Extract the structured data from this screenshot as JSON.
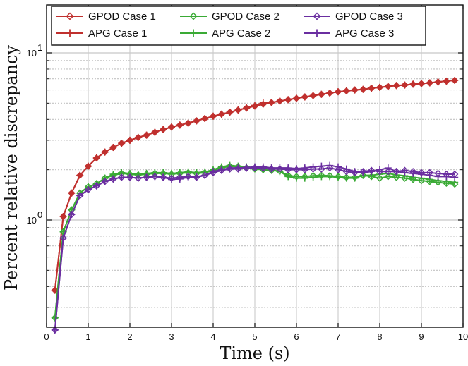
{
  "chart_data": {
    "type": "line",
    "title": "",
    "xlabel": "Time (s)",
    "ylabel": "Percent relative discrepancy",
    "xlim": [
      0,
      10
    ],
    "ylim": [
      0.2,
      20
    ],
    "yscale": "log",
    "grid": true,
    "legend_position": "top",
    "x_ticks": [
      0,
      1,
      2,
      3,
      4,
      5,
      6,
      7,
      8,
      9,
      10
    ],
    "x_tick_labels": [
      "0",
      "1",
      "2",
      "3",
      "4",
      "5",
      "6",
      "7",
      "8",
      "9",
      "10"
    ],
    "y_ticks": [
      1,
      10
    ],
    "y_tick_labels": [
      {
        "base": "10",
        "exp": "0"
      },
      {
        "base": "10",
        "exp": "1"
      }
    ],
    "x": [
      0.2,
      0.4,
      0.6,
      0.8,
      1.0,
      1.2,
      1.4,
      1.6,
      1.8,
      2.0,
      2.2,
      2.4,
      2.6,
      2.8,
      3.0,
      3.2,
      3.4,
      3.6,
      3.8,
      4.0,
      4.2,
      4.4,
      4.6,
      4.8,
      5.0,
      5.2,
      5.4,
      5.6,
      5.8,
      6.0,
      6.2,
      6.4,
      6.6,
      6.8,
      7.0,
      7.2,
      7.4,
      7.6,
      7.8,
      8.0,
      8.2,
      8.4,
      8.6,
      8.8,
      9.0,
      9.2,
      9.4,
      9.6,
      9.8
    ],
    "series": [
      {
        "name": "GPOD Case 1",
        "color": "#c0302e",
        "marker": "diamond",
        "values": [
          0.38,
          1.05,
          1.45,
          1.85,
          2.1,
          2.35,
          2.55,
          2.72,
          2.88,
          3.0,
          3.12,
          3.22,
          3.35,
          3.48,
          3.6,
          3.7,
          3.8,
          3.92,
          4.05,
          4.18,
          4.3,
          4.42,
          4.55,
          4.68,
          4.8,
          4.93,
          5.05,
          5.15,
          5.25,
          5.35,
          5.45,
          5.55,
          5.65,
          5.75,
          5.85,
          5.92,
          6.0,
          6.05,
          6.15,
          6.22,
          6.3,
          6.38,
          6.42,
          6.5,
          6.55,
          6.62,
          6.7,
          6.78,
          6.85
        ]
      },
      {
        "name": "APG Case 1",
        "color": "#c0302e",
        "marker": "plus",
        "values": [
          0.38,
          1.05,
          1.45,
          1.85,
          2.1,
          2.35,
          2.55,
          2.72,
          2.88,
          3.0,
          3.12,
          3.22,
          3.35,
          3.48,
          3.6,
          3.7,
          3.8,
          3.92,
          4.05,
          4.18,
          4.3,
          4.42,
          4.55,
          4.68,
          4.85,
          5.05,
          5.05,
          5.15,
          5.25,
          5.35,
          5.45,
          5.55,
          5.65,
          5.75,
          5.85,
          5.92,
          6.0,
          6.05,
          6.15,
          6.22,
          6.3,
          6.38,
          6.42,
          6.5,
          6.55,
          6.62,
          6.7,
          6.78,
          6.85
        ]
      },
      {
        "name": "GPOD Case 2",
        "color": "#3aaa35",
        "marker": "diamond",
        "values": [
          0.26,
          0.85,
          1.15,
          1.45,
          1.58,
          1.65,
          1.78,
          1.85,
          1.9,
          1.88,
          1.86,
          1.88,
          1.9,
          1.9,
          1.88,
          1.9,
          1.92,
          1.9,
          1.92,
          1.98,
          2.05,
          2.1,
          2.08,
          2.05,
          2.02,
          2.0,
          1.98,
          1.96,
          1.85,
          1.82,
          1.82,
          1.84,
          1.85,
          1.84,
          1.82,
          1.8,
          1.8,
          1.85,
          1.82,
          1.78,
          1.82,
          1.8,
          1.78,
          1.75,
          1.72,
          1.7,
          1.68,
          1.66,
          1.64
        ]
      },
      {
        "name": "APG Case 2",
        "color": "#3aaa35",
        "marker": "plus",
        "values": [
          0.26,
          0.85,
          1.15,
          1.45,
          1.58,
          1.65,
          1.78,
          1.88,
          1.92,
          1.9,
          1.88,
          1.9,
          1.92,
          1.92,
          1.9,
          1.92,
          1.94,
          1.92,
          1.94,
          2.0,
          2.08,
          2.12,
          2.1,
          2.08,
          2.05,
          2.02,
          2.0,
          1.95,
          1.82,
          1.78,
          1.78,
          1.8,
          1.82,
          1.82,
          1.8,
          1.78,
          1.78,
          1.85,
          1.85,
          1.88,
          1.9,
          1.86,
          1.84,
          1.8,
          1.78,
          1.75,
          1.72,
          1.7,
          1.68
        ]
      },
      {
        "name": "GPOD Case 3",
        "color": "#6a2ea0",
        "marker": "diamond",
        "values": [
          0.22,
          0.78,
          1.08,
          1.4,
          1.52,
          1.6,
          1.7,
          1.76,
          1.8,
          1.8,
          1.78,
          1.8,
          1.82,
          1.8,
          1.78,
          1.8,
          1.82,
          1.8,
          1.85,
          1.92,
          1.98,
          2.02,
          2.02,
          2.04,
          2.05,
          2.04,
          2.02,
          2.02,
          2.0,
          2.0,
          2.0,
          2.02,
          2.02,
          2.05,
          2.0,
          1.95,
          1.92,
          1.95,
          1.98,
          1.95,
          1.95,
          1.95,
          1.98,
          1.95,
          1.92,
          1.92,
          1.9,
          1.88,
          1.88
        ]
      },
      {
        "name": "APG Case 3",
        "color": "#6a2ea0",
        "marker": "plus",
        "values": [
          0.22,
          0.78,
          1.08,
          1.4,
          1.52,
          1.6,
          1.7,
          1.76,
          1.8,
          1.8,
          1.78,
          1.8,
          1.82,
          1.8,
          1.75,
          1.76,
          1.8,
          1.82,
          1.85,
          1.95,
          2.0,
          2.05,
          2.05,
          2.06,
          2.08,
          2.08,
          2.05,
          2.05,
          2.05,
          2.03,
          2.05,
          2.08,
          2.1,
          2.12,
          2.08,
          2.02,
          1.95,
          1.92,
          1.95,
          2.0,
          2.05,
          1.95,
          1.92,
          1.9,
          1.88,
          1.85,
          1.82,
          1.82,
          1.8
        ]
      }
    ]
  }
}
